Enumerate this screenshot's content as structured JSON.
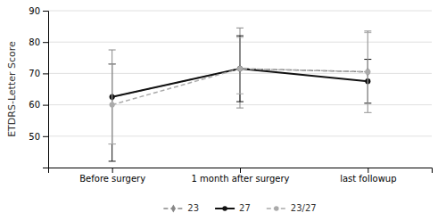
{
  "chart_data": {
    "type": "line",
    "categories": [
      "Before surgery",
      "1 month after surgery",
      "last followup"
    ],
    "series": [
      {
        "name": "23",
        "color": "#888888",
        "marker": "diamond",
        "line_style": "dashed",
        "values": [
          62.5,
          71.5,
          70.5
        ],
        "errors_upper": [
          77.5,
          84.5,
          83.5
        ],
        "errors_lower": [
          47.5,
          59.0,
          57.5
        ]
      },
      {
        "name": "27",
        "color": "#111111",
        "marker": "circle",
        "line_style": "solid",
        "values": [
          62.5,
          71.5,
          67.5
        ],
        "errors_upper": [
          73.0,
          82.0,
          74.5
        ],
        "errors_lower": [
          42.0,
          61.0,
          60.5
        ]
      },
      {
        "name": "23/27",
        "color": "#aaaaaa",
        "marker": "circle",
        "line_style": "dashed",
        "values": [
          60.0,
          71.5,
          70.5
        ],
        "errors_upper": [
          73.0,
          81.5,
          83.0
        ],
        "errors_lower": [
          47.5,
          63.5,
          57.5
        ]
      }
    ],
    "ylabel": "ETDRS-Letter Score",
    "ylim": [
      40,
      90
    ],
    "yticks": [
      50,
      60,
      70,
      80,
      90
    ],
    "grid": true,
    "legend": "bottom"
  }
}
